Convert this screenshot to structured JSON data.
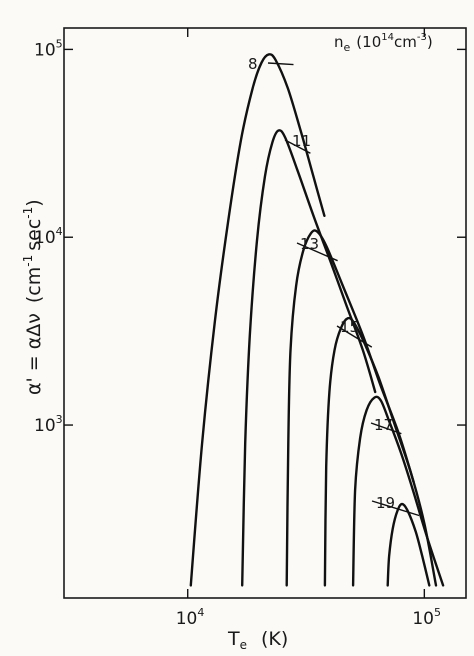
{
  "chart_data": {
    "type": "line",
    "title": "",
    "legend_title": {
      "symbol": "n",
      "subscript": "e",
      "unit_prefix": "(10",
      "unit_exp": "14",
      "unit_mid": "cm",
      "unit_exp2": "-3",
      "unit_suffix": ")"
    },
    "xlabel": {
      "symbol": "T",
      "subscript": "e",
      "unit": "(K)"
    },
    "ylabel": {
      "left": "α' = αΔν",
      "unit_a": "(cm",
      "unit_a_exp": "-1",
      "unit_b": "sec",
      "unit_b_exp": "-1",
      "unit_close": ")"
    },
    "x_scale": "log",
    "y_scale": "log",
    "xlim": [
      3000,
      150000
    ],
    "ylim": [
      120,
      130000
    ],
    "x_ticks": [
      {
        "base": "10",
        "exp": "4",
        "value": 10000
      },
      {
        "base": "10",
        "exp": "5",
        "value": 100000
      }
    ],
    "y_ticks": [
      {
        "base": "10",
        "exp": "3",
        "value": 1000
      },
      {
        "base": "10",
        "exp": "4",
        "value": 10000
      },
      {
        "base": "10",
        "exp": "5",
        "value": 100000
      }
    ],
    "series": [
      {
        "name": "8",
        "label_point": {
          "x": 28000,
          "y": 83000
        },
        "points": [
          [
            10300,
            140
          ],
          [
            11500,
            800
          ],
          [
            13000,
            3500
          ],
          [
            14800,
            12000
          ],
          [
            16800,
            33000
          ],
          [
            18800,
            62000
          ],
          [
            20500,
            85000
          ],
          [
            22000,
            94000
          ],
          [
            23500,
            88000
          ],
          [
            26500,
            62000
          ],
          [
            30000,
            37000
          ],
          [
            34000,
            21000
          ],
          [
            37800,
            13000
          ]
        ]
      },
      {
        "name": "11",
        "label_point": {
          "x": 33000,
          "y": 28000
        },
        "points": [
          [
            17000,
            140
          ],
          [
            17500,
            800
          ],
          [
            18300,
            3000
          ],
          [
            19600,
            9500
          ],
          [
            21200,
            21000
          ],
          [
            22800,
            32000
          ],
          [
            24200,
            37000
          ],
          [
            25800,
            34000
          ],
          [
            29000,
            23000
          ],
          [
            34000,
            13000
          ],
          [
            40000,
            7500
          ],
          [
            47000,
            4300
          ],
          [
            55000,
            2500
          ],
          [
            62000,
            1500
          ]
        ]
      },
      {
        "name": "13",
        "label_point": {
          "x": 43000,
          "y": 7500
        },
        "points": [
          [
            26200,
            140
          ],
          [
            26600,
            800
          ],
          [
            27200,
            2500
          ],
          [
            28700,
            5500
          ],
          [
            30800,
            8500
          ],
          [
            33200,
            10500
          ],
          [
            35300,
            10700
          ],
          [
            38500,
            9000
          ],
          [
            45000,
            5600
          ],
          [
            55000,
            3000
          ],
          [
            65000,
            1650
          ],
          [
            78000,
            900
          ],
          [
            90000,
            500
          ]
        ]
      },
      {
        "name": "15",
        "label_point": {
          "x": 60000,
          "y": 2600
        },
        "points": [
          [
            38000,
            140
          ],
          [
            38500,
            600
          ],
          [
            39700,
            1500
          ],
          [
            41700,
            2500
          ],
          [
            44500,
            3300
          ],
          [
            47500,
            3700
          ],
          [
            50500,
            3500
          ],
          [
            56000,
            2700
          ],
          [
            64000,
            1800
          ],
          [
            75000,
            1000
          ],
          [
            88000,
            550
          ],
          [
            100000,
            300
          ],
          [
            112000,
            140
          ]
        ]
      },
      {
        "name": "17",
        "label_point": {
          "x": 80000,
          "y": 900
        },
        "points": [
          [
            50000,
            140
          ],
          [
            51000,
            450
          ],
          [
            53500,
            850
          ],
          [
            57000,
            1200
          ],
          [
            61500,
            1400
          ],
          [
            65500,
            1350
          ],
          [
            71000,
            1050
          ],
          [
            80000,
            700
          ],
          [
            90000,
            440
          ],
          [
            103000,
            250
          ],
          [
            120000,
            140
          ]
        ]
      },
      {
        "name": "19",
        "label_point": {
          "x": 95000,
          "y": 330
        },
        "points": [
          [
            70000,
            140
          ],
          [
            71000,
            200
          ],
          [
            73500,
            280
          ],
          [
            77000,
            350
          ],
          [
            80500,
            380
          ],
          [
            85000,
            350
          ],
          [
            92000,
            270
          ],
          [
            98000,
            200
          ],
          [
            105000,
            140
          ]
        ]
      }
    ],
    "curve_labels": [
      "8",
      "11",
      "13",
      "15",
      "17",
      "19"
    ],
    "grid": false,
    "legend": "top-right"
  }
}
